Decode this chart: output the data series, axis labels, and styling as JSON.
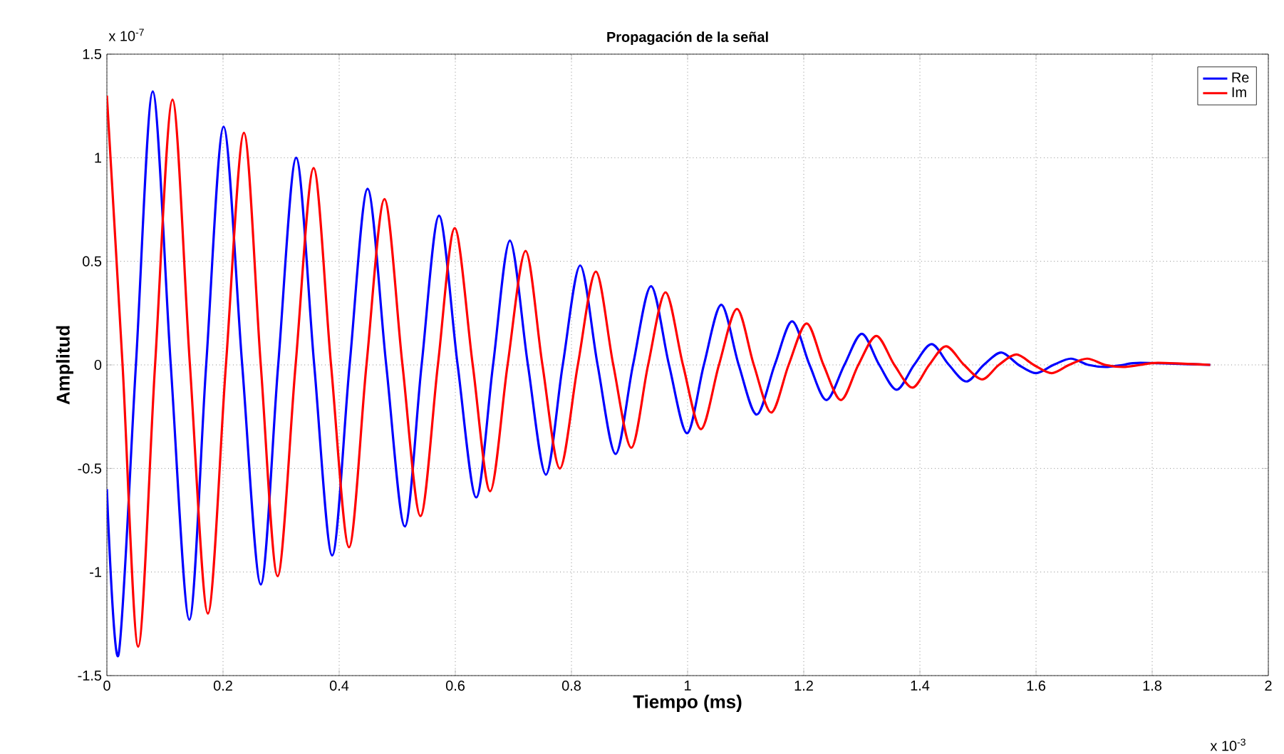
{
  "chart_data": {
    "type": "line",
    "title": "Propagación de la señal",
    "xlabel": "Tiempo (ms)",
    "ylabel": "Amplitud",
    "annotations": [
      "x 10$^{-7}$",
      "x 10$^{-3}$"
    ],
    "xlim": [
      0,
      2
    ],
    "ylim": [
      -1.5,
      1.5
    ],
    "xticks": [
      0,
      0.2,
      0.4,
      0.6,
      0.8,
      1,
      1.2,
      1.4,
      1.6,
      1.8,
      2
    ],
    "yticks": [
      -1.5,
      -1,
      -0.5,
      0,
      0.5,
      1,
      1.5
    ],
    "grid": true,
    "legend": "top right",
    "marker": "none",
    "line_style": "solid",
    "series": [
      {
        "name": "Re",
        "color": "#0000ff",
        "x": [
          0,
          0.02,
          0.05,
          0.079,
          0.11,
          0.142,
          0.171,
          0.201,
          0.233,
          0.265,
          0.295,
          0.326,
          0.357,
          0.388,
          0.418,
          0.449,
          0.481,
          0.513,
          0.542,
          0.572,
          0.604,
          0.636,
          0.665,
          0.694,
          0.725,
          0.756,
          0.785,
          0.815,
          0.845,
          0.876,
          0.906,
          0.937,
          0.968,
          0.999,
          1.028,
          1.058,
          1.088,
          1.119,
          1.15,
          1.18,
          1.21,
          1.239,
          1.27,
          1.3,
          1.33,
          1.36,
          1.39,
          1.42,
          1.45,
          1.48,
          1.51,
          1.54,
          1.57,
          1.6,
          1.63,
          1.66,
          1.69,
          1.72,
          1.75,
          1.78,
          1.9
        ],
        "values": [
          -0.6,
          -1.4,
          0,
          1.32,
          0,
          -1.23,
          0,
          1.15,
          0,
          -1.06,
          0,
          1.0,
          0,
          -0.92,
          0,
          0.85,
          0,
          -0.78,
          0,
          0.72,
          0,
          -0.64,
          0,
          0.6,
          0,
          -0.53,
          0,
          0.48,
          0,
          -0.43,
          0,
          0.38,
          0,
          -0.33,
          0,
          0.29,
          0,
          -0.24,
          0,
          0.21,
          0,
          -0.17,
          0,
          0.15,
          0,
          -0.12,
          0,
          0.1,
          0,
          -0.08,
          0,
          0.06,
          0,
          -0.04,
          0,
          0.03,
          0,
          -0.01,
          0,
          0.01,
          0
        ]
      },
      {
        "name": "Im",
        "color": "#ff0000",
        "x": [
          0,
          0.027,
          0.054,
          0.083,
          0.113,
          0.143,
          0.174,
          0.205,
          0.236,
          0.265,
          0.294,
          0.325,
          0.356,
          0.386,
          0.417,
          0.447,
          0.478,
          0.509,
          0.54,
          0.57,
          0.599,
          0.63,
          0.66,
          0.69,
          0.721,
          0.75,
          0.78,
          0.811,
          0.842,
          0.872,
          0.903,
          0.932,
          0.962,
          0.992,
          1.023,
          1.054,
          1.085,
          1.114,
          1.144,
          1.174,
          1.205,
          1.234,
          1.264,
          1.294,
          1.325,
          1.356,
          1.387,
          1.416,
          1.445,
          1.476,
          1.507,
          1.536,
          1.566,
          1.596,
          1.627,
          1.657,
          1.688,
          1.719,
          1.75,
          1.78,
          1.81,
          1.9
        ],
        "values": [
          1.3,
          0,
          -1.36,
          0,
          1.28,
          0,
          -1.2,
          0,
          1.12,
          0,
          -1.02,
          0,
          0.95,
          0,
          -0.88,
          0,
          0.8,
          0,
          -0.73,
          0,
          0.66,
          0,
          -0.61,
          0,
          0.55,
          0,
          -0.5,
          0,
          0.45,
          0,
          -0.4,
          0,
          0.35,
          0,
          -0.31,
          0,
          0.27,
          0,
          -0.23,
          0,
          0.2,
          0,
          -0.17,
          0,
          0.14,
          0,
          -0.11,
          0,
          0.09,
          0,
          -0.07,
          0,
          0.05,
          0,
          -0.04,
          0,
          0.03,
          0,
          -0.01,
          0,
          0.01,
          0
        ]
      }
    ]
  }
}
